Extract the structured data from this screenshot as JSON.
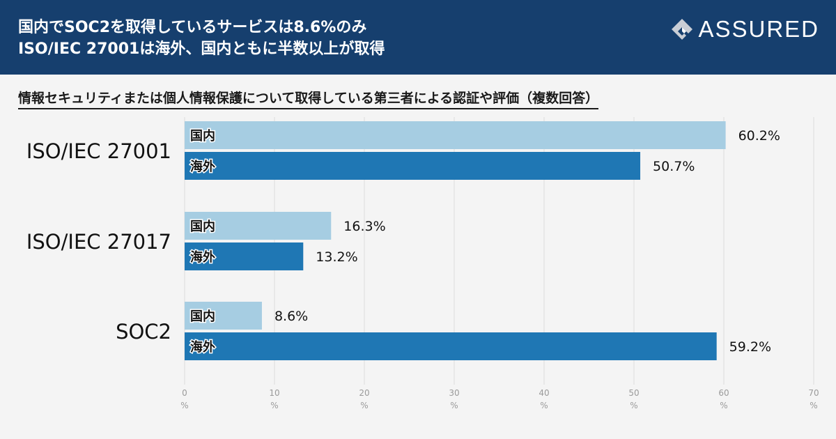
{
  "header": {
    "title_line1": "国内でSOC2を取得しているサービスは8.6%のみ",
    "title_line2": "ISO/IEC 27001は海外、国内ともに半数以上が取得",
    "logo_text": "ASSURED"
  },
  "colors": {
    "header_bg": "#163f6e",
    "domestic": "#a6cde2",
    "overseas": "#1f77b4"
  },
  "chart_data": {
    "type": "bar",
    "orientation": "horizontal",
    "title": "情報セキュリティまたは個人情報保護について取得している第三者による認証や評価（複数回答）",
    "categories": [
      "ISO/IEC 27001",
      "ISO/IEC 27017",
      "SOC2"
    ],
    "series": [
      {
        "name": "国内",
        "values": [
          60.2,
          16.3,
          8.6
        ],
        "labels": [
          "60.2%",
          "16.3%",
          "8.6%"
        ]
      },
      {
        "name": "海外",
        "values": [
          50.7,
          13.2,
          59.2
        ],
        "labels": [
          "50.7%",
          "13.2%",
          "59.2%"
        ]
      }
    ],
    "xlim": [
      0,
      70
    ],
    "xticks": [
      0,
      10,
      20,
      30,
      40,
      50,
      60,
      70
    ],
    "xtick_unit": "%",
    "grid": true,
    "legend": "in-bar labels"
  }
}
